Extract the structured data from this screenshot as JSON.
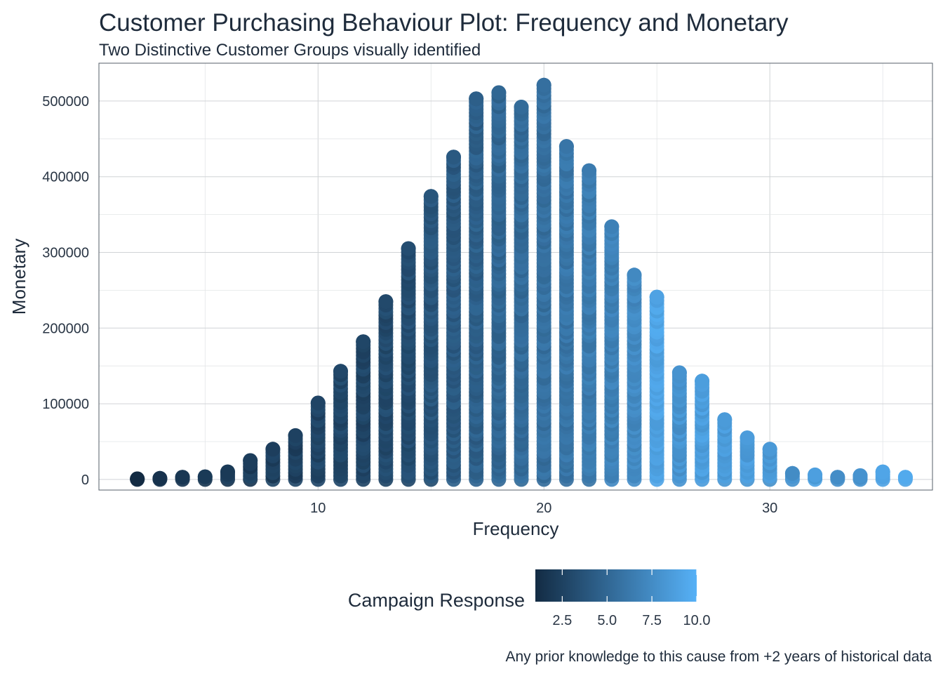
{
  "chart_data": {
    "type": "scatter",
    "title": "Customer Purchasing Behaviour Plot: Frequency and Monetary",
    "subtitle": "Two Distinctive Customer Groups visually identified",
    "xlabel": "Frequency",
    "ylabel": "Monetary",
    "caption": "Any prior knowledge to this cause from +2 years of historical data",
    "xlim": [
      0.3,
      37.2
    ],
    "ylim": [
      -14000,
      550000
    ],
    "x_ticks": [
      10,
      20,
      30
    ],
    "y_ticks": [
      0,
      100000,
      200000,
      300000,
      400000,
      500000
    ],
    "grid": true,
    "legend_position": "bottom",
    "color_scale": {
      "title": "Campaign Response",
      "low_color": "#132B43",
      "high_color": "#56B1F7",
      "range": [
        1,
        10
      ],
      "ticks": [
        2.5,
        5.0,
        7.5,
        10.0
      ],
      "tick_labels": [
        "2.5",
        "5.0",
        "7.5",
        "10.0"
      ]
    },
    "series": [
      {
        "points_by_frequency": [
          {
            "x": 2,
            "y_min": 0,
            "y_max": 800,
            "color_value": 1.0
          },
          {
            "x": 3,
            "y_min": 0,
            "y_max": 1500,
            "color_value": 1.5
          },
          {
            "x": 4,
            "y_min": 0,
            "y_max": 3000,
            "color_value": 1.8
          },
          {
            "x": 5,
            "y_min": 0,
            "y_max": 3500,
            "color_value": 2.0
          },
          {
            "x": 6,
            "y_min": 0,
            "y_max": 10000,
            "color_value": 2.0
          },
          {
            "x": 7,
            "y_min": 0,
            "y_max": 25000,
            "color_value": 2.2
          },
          {
            "x": 8,
            "y_min": 0,
            "y_max": 40000,
            "color_value": 2.3
          },
          {
            "x": 9,
            "y_min": 0,
            "y_max": 58000,
            "color_value": 2.5
          },
          {
            "x": 10,
            "y_min": 0,
            "y_max": 101000,
            "color_value": 2.7
          },
          {
            "x": 11,
            "y_min": 0,
            "y_max": 143000,
            "color_value": 2.9
          },
          {
            "x": 12,
            "y_min": 0,
            "y_max": 182000,
            "color_value": 2.8
          },
          {
            "x": 13,
            "y_min": 0,
            "y_max": 235000,
            "color_value": 3.0
          },
          {
            "x": 14,
            "y_min": 0,
            "y_max": 305000,
            "color_value": 3.3
          },
          {
            "x": 15,
            "y_min": 0,
            "y_max": 374000,
            "color_value": 3.8
          },
          {
            "x": 16,
            "y_min": 0,
            "y_max": 426000,
            "color_value": 4.1
          },
          {
            "x": 17,
            "y_min": 0,
            "y_max": 503000,
            "color_value": 4.5
          },
          {
            "x": 18,
            "y_min": 0,
            "y_max": 511000,
            "color_value": 5.0
          },
          {
            "x": 19,
            "y_min": 0,
            "y_max": 492000,
            "color_value": 5.3
          },
          {
            "x": 20,
            "y_min": 0,
            "y_max": 521000,
            "color_value": 5.6
          },
          {
            "x": 21,
            "y_min": 0,
            "y_max": 440000,
            "color_value": 6.0
          },
          {
            "x": 22,
            "y_min": 0,
            "y_max": 408000,
            "color_value": 6.4
          },
          {
            "x": 23,
            "y_min": 0,
            "y_max": 334000,
            "color_value": 6.8
          },
          {
            "x": 24,
            "y_min": 0,
            "y_max": 270000,
            "color_value": 7.3
          },
          {
            "x": 25,
            "y_min": 0,
            "y_max": 241000,
            "color_value": 9.0
          },
          {
            "x": 26,
            "y_min": 0,
            "y_max": 141000,
            "color_value": 8.0
          },
          {
            "x": 27,
            "y_min": 0,
            "y_max": 130000,
            "color_value": 8.7
          },
          {
            "x": 28,
            "y_min": 0,
            "y_max": 79000,
            "color_value": 8.5
          },
          {
            "x": 29,
            "y_min": 0,
            "y_max": 55000,
            "color_value": 8.6
          },
          {
            "x": 30,
            "y_min": 0,
            "y_max": 40000,
            "color_value": 8.4
          },
          {
            "x": 31,
            "y_min": 0,
            "y_max": 8000,
            "color_value": 7.5
          },
          {
            "x": 32,
            "y_min": 0,
            "y_max": 6000,
            "color_value": 8.8
          },
          {
            "x": 33,
            "y_min": 0,
            "y_max": 3000,
            "color_value": 7.6
          },
          {
            "x": 34,
            "y_min": 0,
            "y_max": 5000,
            "color_value": 8.0
          },
          {
            "x": 35,
            "y_min": 0,
            "y_max": 10000,
            "color_value": 9.2
          },
          {
            "x": 36,
            "y_min": 0,
            "y_max": 3000,
            "color_value": 9.5
          }
        ]
      }
    ]
  }
}
